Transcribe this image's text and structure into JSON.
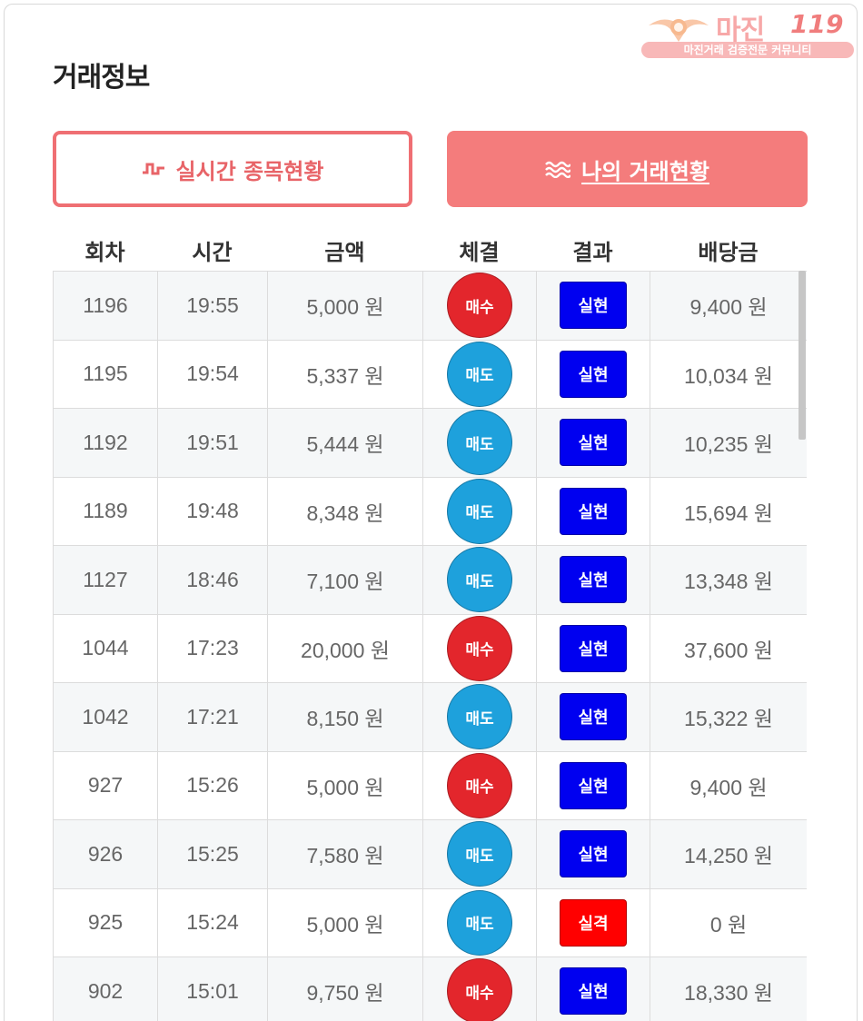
{
  "header": {
    "title": "거래정보"
  },
  "watermark": {
    "brand": "마진",
    "number": "119",
    "tagline": "마진거래 검증전문 커뮤니티"
  },
  "tabs": {
    "live": {
      "label": "실시간 종목현황",
      "icon": "pulse-icon"
    },
    "mine": {
      "label": "나의 거래현황",
      "icon": "waves-icon"
    }
  },
  "colors": {
    "accent": "#f47c7c",
    "buy": "#e3262c",
    "sell": "#1ea1dc",
    "win": "#0000f0",
    "lose": "#ff0000"
  },
  "table": {
    "columns": [
      "회차",
      "시간",
      "금액",
      "체결",
      "결과",
      "배당금"
    ],
    "rows": [
      {
        "round": "1196",
        "time": "19:55",
        "amount": "5,000 원",
        "trade": "매수",
        "trade_type": "buy",
        "result": "실현",
        "result_type": "win",
        "payout": "9,400 원"
      },
      {
        "round": "1195",
        "time": "19:54",
        "amount": "5,337 원",
        "trade": "매도",
        "trade_type": "sell",
        "result": "실현",
        "result_type": "win",
        "payout": "10,034 원"
      },
      {
        "round": "1192",
        "time": "19:51",
        "amount": "5,444 원",
        "trade": "매도",
        "trade_type": "sell",
        "result": "실현",
        "result_type": "win",
        "payout": "10,235 원"
      },
      {
        "round": "1189",
        "time": "19:48",
        "amount": "8,348 원",
        "trade": "매도",
        "trade_type": "sell",
        "result": "실현",
        "result_type": "win",
        "payout": "15,694 원"
      },
      {
        "round": "1127",
        "time": "18:46",
        "amount": "7,100 원",
        "trade": "매도",
        "trade_type": "sell",
        "result": "실현",
        "result_type": "win",
        "payout": "13,348 원"
      },
      {
        "round": "1044",
        "time": "17:23",
        "amount": "20,000 원",
        "trade": "매수",
        "trade_type": "buy",
        "result": "실현",
        "result_type": "win",
        "payout": "37,600 원"
      },
      {
        "round": "1042",
        "time": "17:21",
        "amount": "8,150 원",
        "trade": "매도",
        "trade_type": "sell",
        "result": "실현",
        "result_type": "win",
        "payout": "15,322 원"
      },
      {
        "round": "927",
        "time": "15:26",
        "amount": "5,000 원",
        "trade": "매수",
        "trade_type": "buy",
        "result": "실현",
        "result_type": "win",
        "payout": "9,400 원"
      },
      {
        "round": "926",
        "time": "15:25",
        "amount": "7,580 원",
        "trade": "매도",
        "trade_type": "sell",
        "result": "실현",
        "result_type": "win",
        "payout": "14,250 원"
      },
      {
        "round": "925",
        "time": "15:24",
        "amount": "5,000 원",
        "trade": "매도",
        "trade_type": "sell",
        "result": "실격",
        "result_type": "lose",
        "payout": "0 원"
      },
      {
        "round": "902",
        "time": "15:01",
        "amount": "9,750 원",
        "trade": "매수",
        "trade_type": "buy",
        "result": "실현",
        "result_type": "win",
        "payout": "18,330 원"
      }
    ]
  }
}
